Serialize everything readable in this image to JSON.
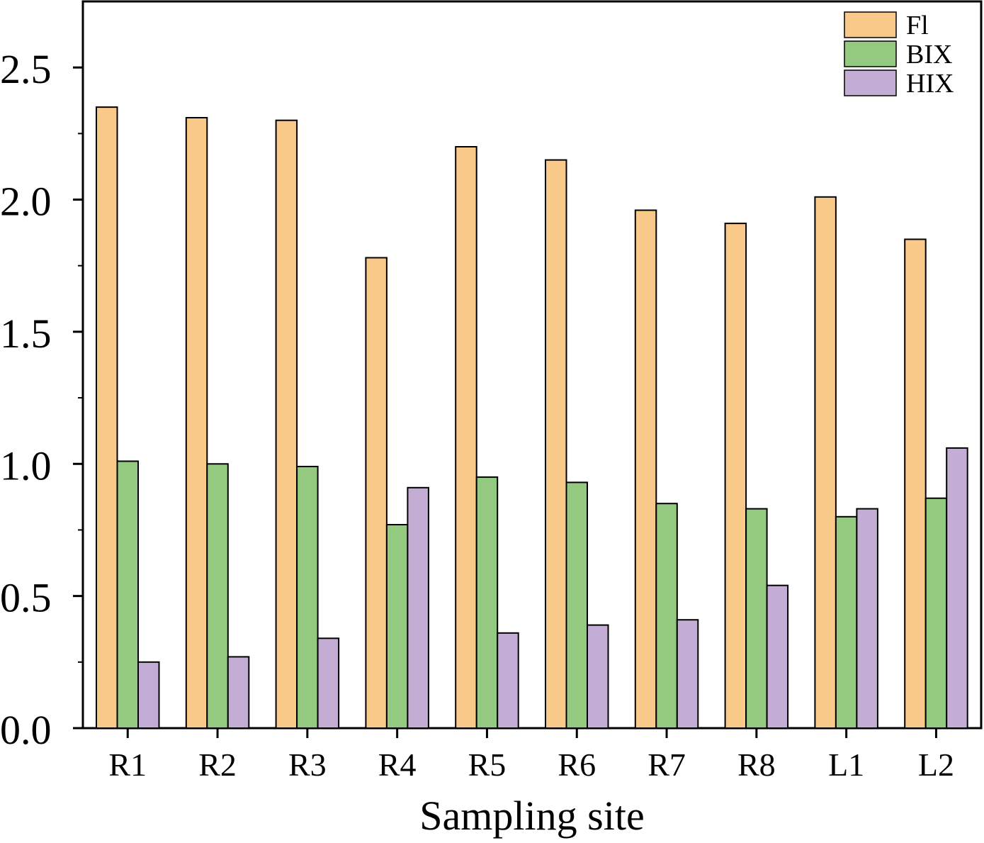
{
  "chart_data": {
    "type": "bar",
    "title": "",
    "xlabel": "Sampling site",
    "ylabel": "",
    "ylim": [
      0,
      2.75
    ],
    "yticks": [
      "0.0",
      "0.5",
      "1.0",
      "1.5",
      "2.0",
      "2.5"
    ],
    "ytick_values": [
      0,
      0.5,
      1.0,
      1.5,
      2.0,
      2.5
    ],
    "grid": false,
    "legend_position": "top-right",
    "categories": [
      "R1",
      "R2",
      "R3",
      "R4",
      "R5",
      "R6",
      "R7",
      "R8",
      "L1",
      "L2"
    ],
    "series": [
      {
        "name": "Fl",
        "color": "#F9C98A",
        "values": [
          2.35,
          2.31,
          2.3,
          1.78,
          2.2,
          2.15,
          1.96,
          1.91,
          2.01,
          1.85
        ]
      },
      {
        "name": "BIX",
        "color": "#94CA80",
        "values": [
          1.01,
          1.0,
          0.99,
          0.77,
          0.95,
          0.93,
          0.85,
          0.83,
          0.8,
          0.87
        ]
      },
      {
        "name": "HIX",
        "color": "#C4ADD4",
        "values": [
          0.25,
          0.27,
          0.34,
          0.91,
          0.36,
          0.39,
          0.41,
          0.54,
          0.83,
          1.06
        ]
      }
    ]
  }
}
